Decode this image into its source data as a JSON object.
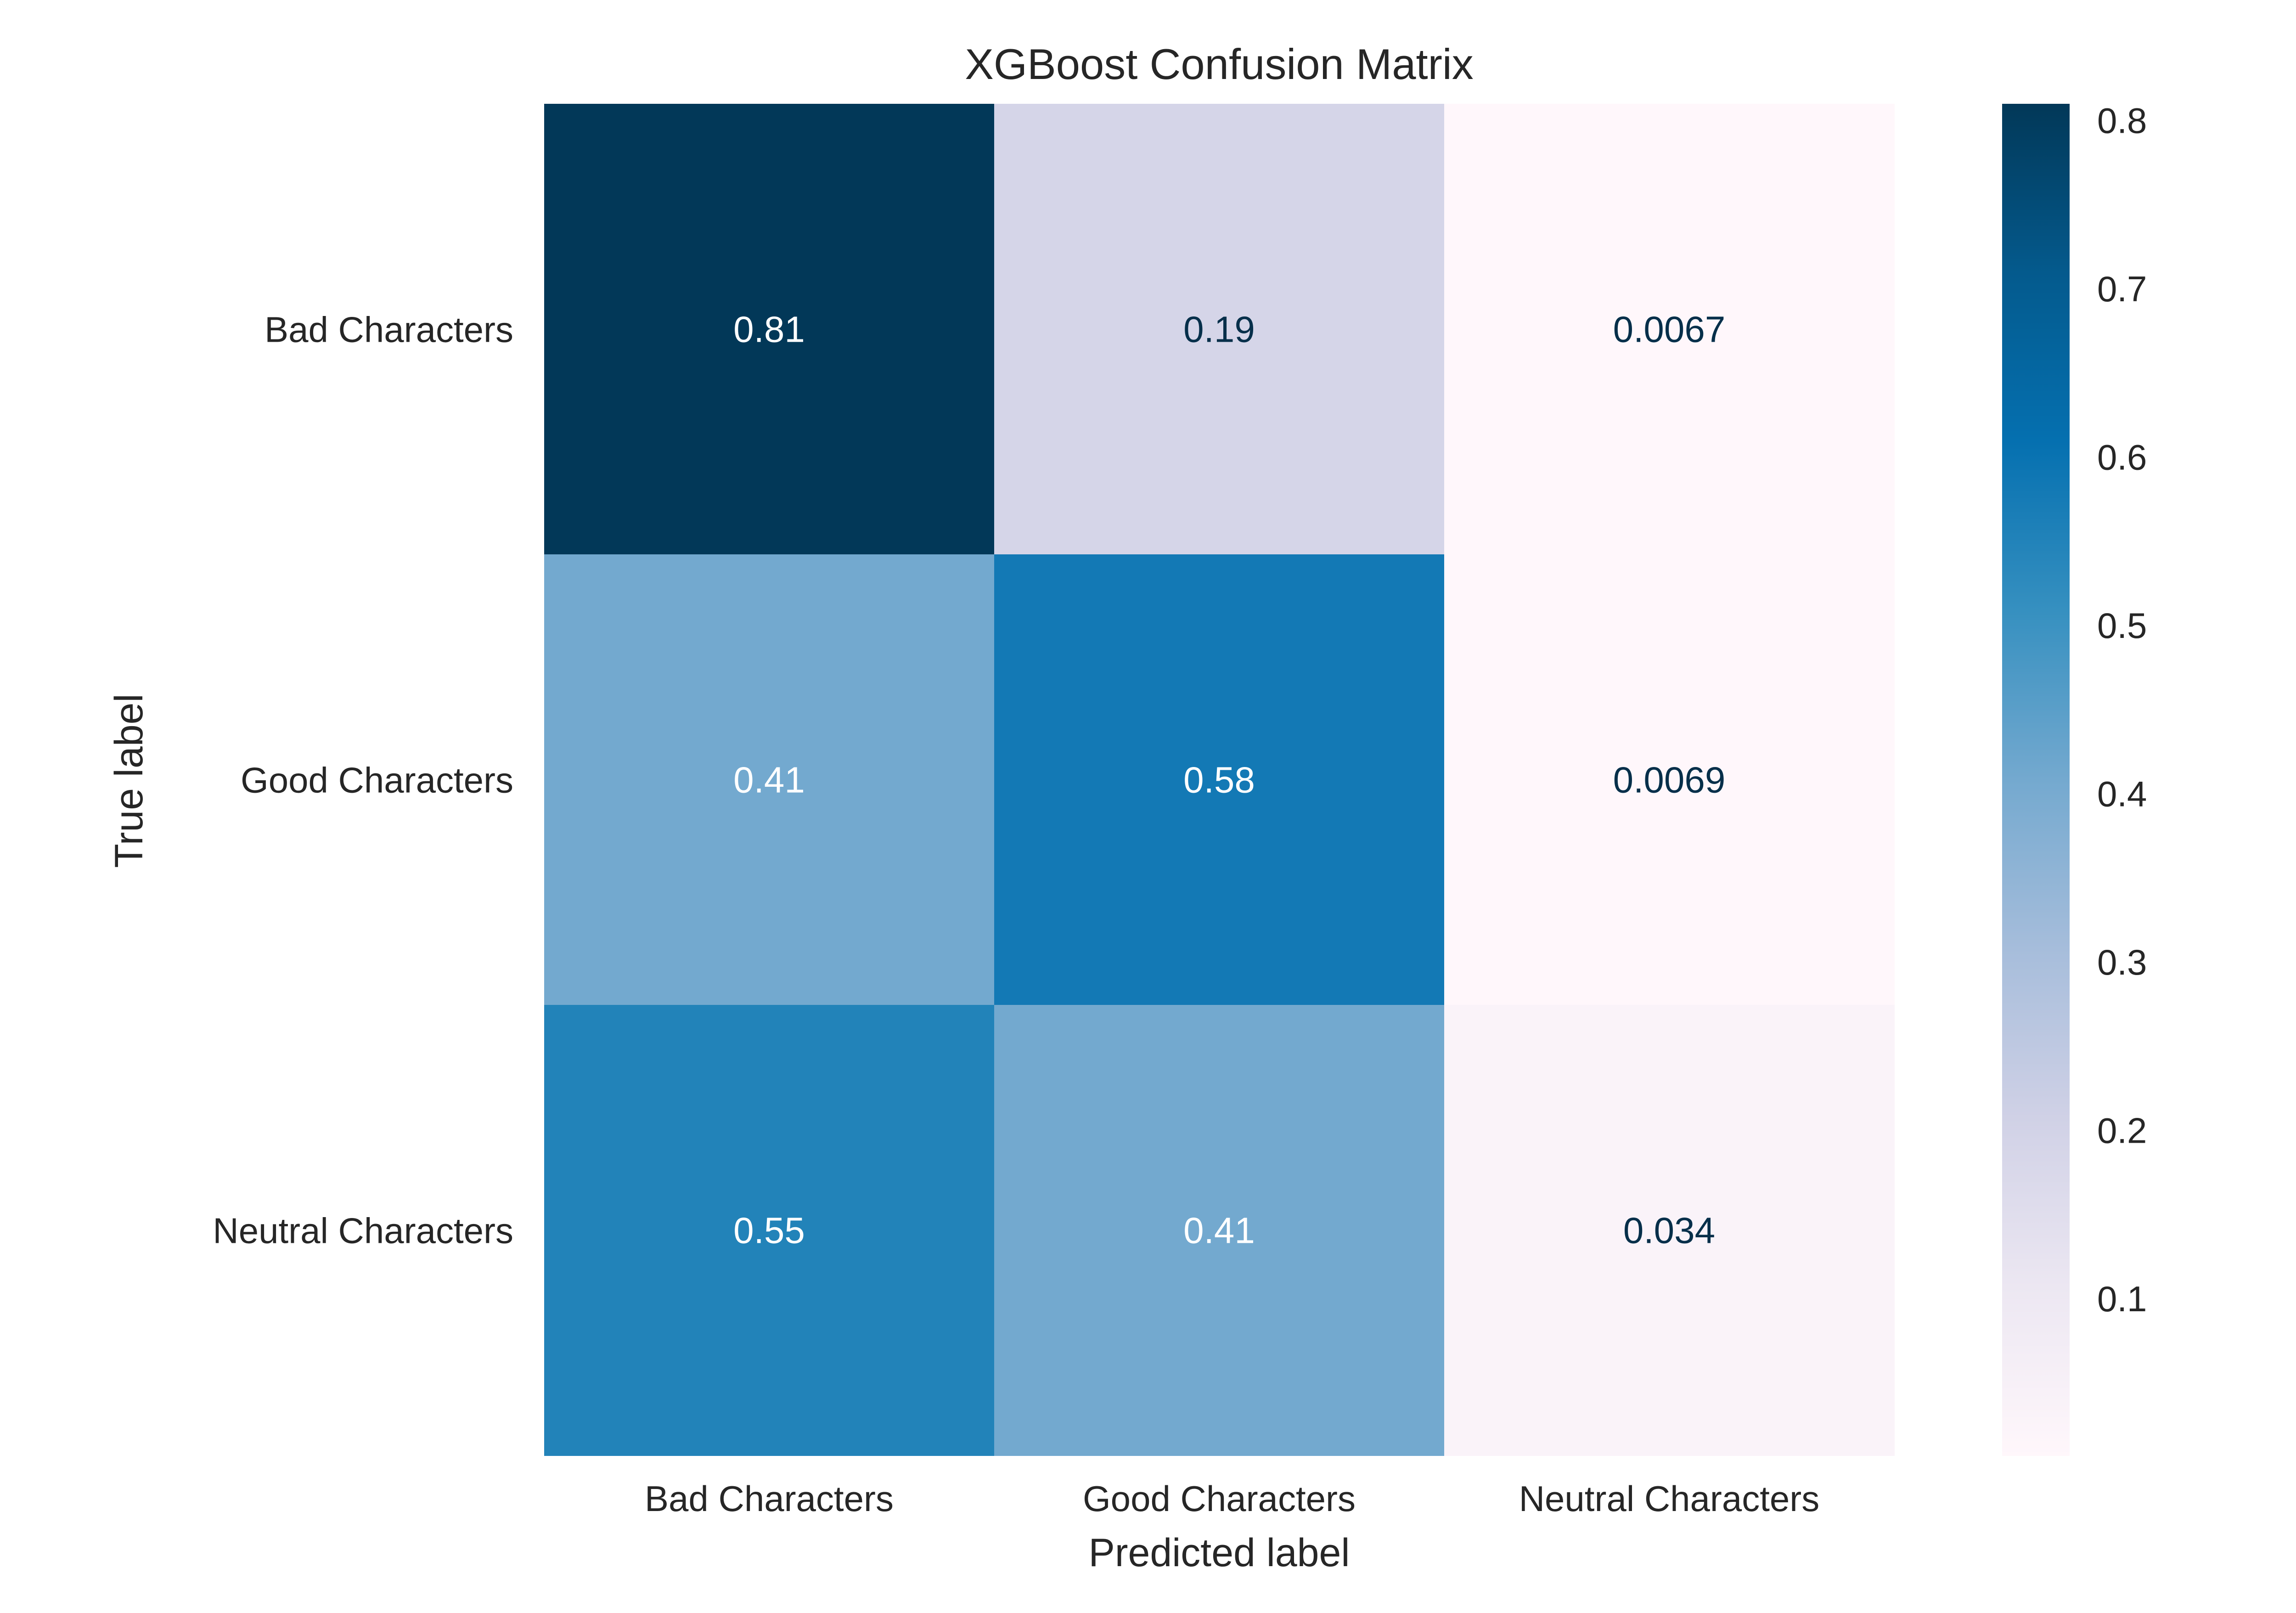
{
  "chart_data": {
    "type": "heatmap",
    "title": "XGBoost Confusion Matrix",
    "xlabel": "Predicted label",
    "ylabel": "True label",
    "x_categories": [
      "Bad Characters",
      "Good Characters",
      "Neutral Characters"
    ],
    "y_categories": [
      "Bad Characters",
      "Good Characters",
      "Neutral Characters"
    ],
    "values": [
      [
        0.81,
        0.19,
        0.0067
      ],
      [
        0.41,
        0.58,
        0.0069
      ],
      [
        0.55,
        0.41,
        0.034
      ]
    ],
    "value_labels": [
      [
        "0.81",
        "0.19",
        "0.0067"
      ],
      [
        "0.41",
        "0.58",
        "0.0069"
      ],
      [
        "0.55",
        "0.41",
        "0.034"
      ]
    ],
    "colormap": "PuBu",
    "colorbar": {
      "range": [
        0.0067,
        0.81
      ],
      "ticks": [
        0.1,
        0.2,
        0.3,
        0.4,
        0.5,
        0.6,
        0.7,
        0.8
      ],
      "tick_labels": [
        "0.1",
        "0.2",
        "0.3",
        "0.4",
        "0.5",
        "0.6",
        "0.7",
        "0.8"
      ]
    },
    "grid": false
  }
}
